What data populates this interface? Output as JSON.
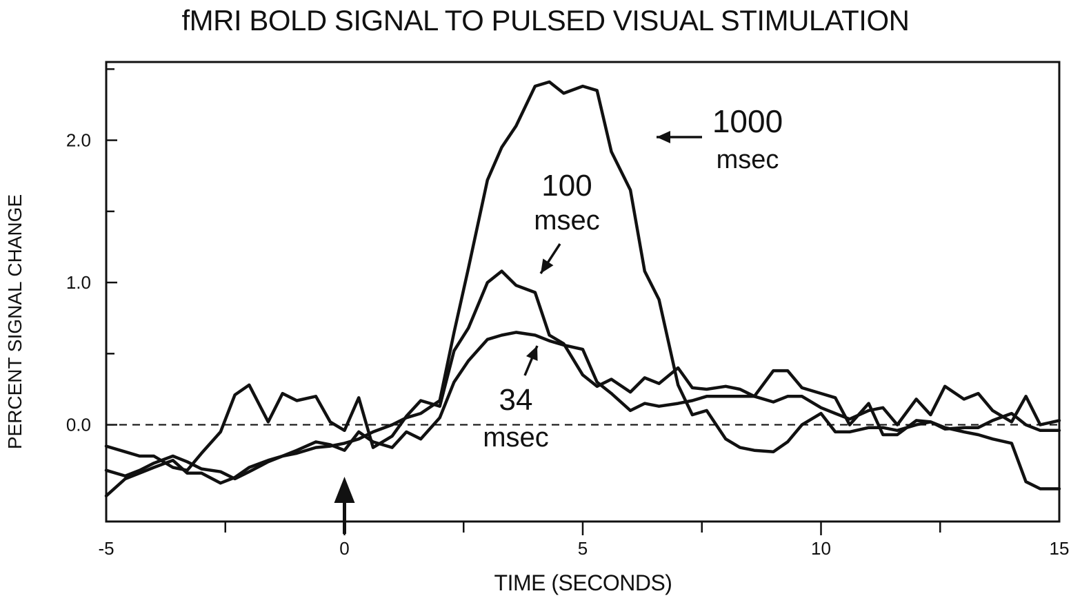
{
  "title": "fMRI BOLD SIGNAL TO PULSED VISUAL STIMULATION",
  "chart_data": {
    "type": "line",
    "title": "fMRI BOLD SIGNAL TO PULSED VISUAL STIMULATION",
    "xlabel": "TIME (SECONDS)",
    "ylabel": "PERCENT SIGNAL CHANGE",
    "xlim": [
      -5,
      15
    ],
    "ylim": [
      -0.68,
      2.55
    ],
    "xticks": [
      -5,
      0,
      5,
      10,
      15
    ],
    "xtick_labels": [
      "-5",
      "0",
      "5",
      "10",
      "15"
    ],
    "yticks": [
      0.0,
      1.0,
      2.0
    ],
    "ytick_labels": [
      "0.0",
      "1.0",
      "2.0"
    ],
    "baseline": 0.0,
    "grid": false,
    "stimulus_arrow_at": 0,
    "annotations": [
      {
        "line1": "1000",
        "line2": "msec",
        "series": 0
      },
      {
        "line1": "100",
        "line2": "msec",
        "series": 1
      },
      {
        "line1": "34",
        "line2": "msec",
        "series": 2
      }
    ],
    "series": [
      {
        "x": [
          -5,
          -4.6,
          -4.3,
          -4,
          -3.6,
          -3.3,
          -3,
          -2.6,
          -2.3,
          -2,
          -1.6,
          -1.3,
          -1,
          -0.6,
          -0.3,
          0,
          0.3,
          0.6,
          1,
          1.3,
          1.6,
          2,
          2.3,
          2.6,
          3,
          3.3,
          3.6,
          4,
          4.3,
          4.6,
          5,
          5.3,
          5.6,
          6,
          6.3,
          6.6,
          7,
          7.3,
          7.6,
          8,
          8.3,
          8.6,
          9,
          9.3,
          9.6,
          10,
          10.3,
          10.6,
          11,
          11.3,
          11.6,
          12,
          12.3,
          12.6,
          13,
          13.3,
          13.6,
          14,
          14.3,
          14.6,
          15
        ],
        "y": [
          -0.5,
          -0.38,
          -0.34,
          -0.3,
          -0.25,
          -0.34,
          -0.34,
          -0.41,
          -0.37,
          -0.3,
          -0.25,
          -0.22,
          -0.2,
          -0.16,
          -0.15,
          -0.13,
          -0.1,
          -0.05,
          0.0,
          0.05,
          0.08,
          0.17,
          0.65,
          1.1,
          1.72,
          1.95,
          2.1,
          2.38,
          2.41,
          2.33,
          2.38,
          2.35,
          1.92,
          1.65,
          1.08,
          0.88,
          0.28,
          0.07,
          0.1,
          -0.1,
          -0.16,
          -0.18,
          -0.19,
          -0.12,
          0.0,
          0.08,
          -0.05,
          -0.05,
          -0.02,
          -0.02,
          -0.04,
          0.0,
          0.02,
          -0.02,
          -0.05,
          -0.07,
          -0.1,
          -0.13,
          -0.4,
          -0.45,
          -0.45
        ]
      },
      {
        "x": [
          -5,
          -4.6,
          -4.3,
          -4,
          -3.6,
          -3.3,
          -3,
          -2.6,
          -2.3,
          -2,
          -1.6,
          -1.3,
          -1,
          -0.6,
          -0.3,
          0,
          0.3,
          0.6,
          1,
          1.3,
          1.6,
          2,
          2.3,
          2.6,
          3,
          3.3,
          3.6,
          4,
          4.3,
          4.6,
          5,
          5.3,
          5.6,
          6,
          6.3,
          6.6,
          7,
          7.3,
          7.6,
          8,
          8.3,
          8.6,
          9,
          9.3,
          9.6,
          10,
          10.3,
          10.6,
          11,
          11.3,
          11.6,
          12,
          12.3,
          12.6,
          13,
          13.3,
          13.6,
          14,
          14.3,
          14.6,
          15
        ],
        "y": [
          -0.15,
          -0.19,
          -0.22,
          -0.22,
          -0.3,
          -0.32,
          -0.2,
          -0.05,
          0.21,
          0.28,
          0.02,
          0.22,
          0.17,
          0.2,
          0.02,
          -0.04,
          0.19,
          -0.16,
          -0.08,
          0.06,
          0.17,
          0.13,
          0.52,
          0.68,
          1.0,
          1.08,
          0.98,
          0.93,
          0.63,
          0.57,
          0.35,
          0.27,
          0.32,
          0.23,
          0.33,
          0.29,
          0.4,
          0.26,
          0.25,
          0.27,
          0.25,
          0.2,
          0.38,
          0.38,
          0.26,
          0.22,
          0.19,
          0.0,
          0.15,
          -0.07,
          -0.07,
          0.03,
          0.02,
          -0.03,
          -0.02,
          -0.02,
          0.03,
          0.08,
          0.0,
          -0.04,
          -0.04
        ]
      },
      {
        "x": [
          -5,
          -4.6,
          -4.3,
          -4,
          -3.6,
          -3.3,
          -3,
          -2.6,
          -2.3,
          -2,
          -1.6,
          -1.3,
          -1,
          -0.6,
          -0.3,
          0,
          0.3,
          0.6,
          1,
          1.3,
          1.6,
          2,
          2.3,
          2.6,
          3,
          3.3,
          3.6,
          4,
          4.3,
          4.6,
          5,
          5.3,
          5.6,
          6,
          6.3,
          6.6,
          7,
          7.3,
          7.6,
          8,
          8.3,
          8.6,
          9,
          9.3,
          9.6,
          10,
          10.3,
          10.6,
          11,
          11.3,
          11.6,
          12,
          12.3,
          12.6,
          13,
          13.3,
          13.6,
          14,
          14.3,
          14.6,
          15
        ],
        "y": [
          -0.32,
          -0.36,
          -0.32,
          -0.27,
          -0.22,
          -0.26,
          -0.31,
          -0.33,
          -0.38,
          -0.33,
          -0.26,
          -0.22,
          -0.18,
          -0.12,
          -0.14,
          -0.18,
          -0.05,
          -0.12,
          -0.16,
          -0.05,
          -0.1,
          0.05,
          0.3,
          0.45,
          0.6,
          0.63,
          0.65,
          0.63,
          0.59,
          0.56,
          0.53,
          0.3,
          0.22,
          0.1,
          0.15,
          0.13,
          0.15,
          0.17,
          0.2,
          0.2,
          0.2,
          0.2,
          0.16,
          0.2,
          0.2,
          0.12,
          0.08,
          0.04,
          0.1,
          0.12,
          0.0,
          0.18,
          0.07,
          0.27,
          0.18,
          0.22,
          0.1,
          0.02,
          0.2,
          0.0,
          0.03
        ]
      }
    ]
  }
}
